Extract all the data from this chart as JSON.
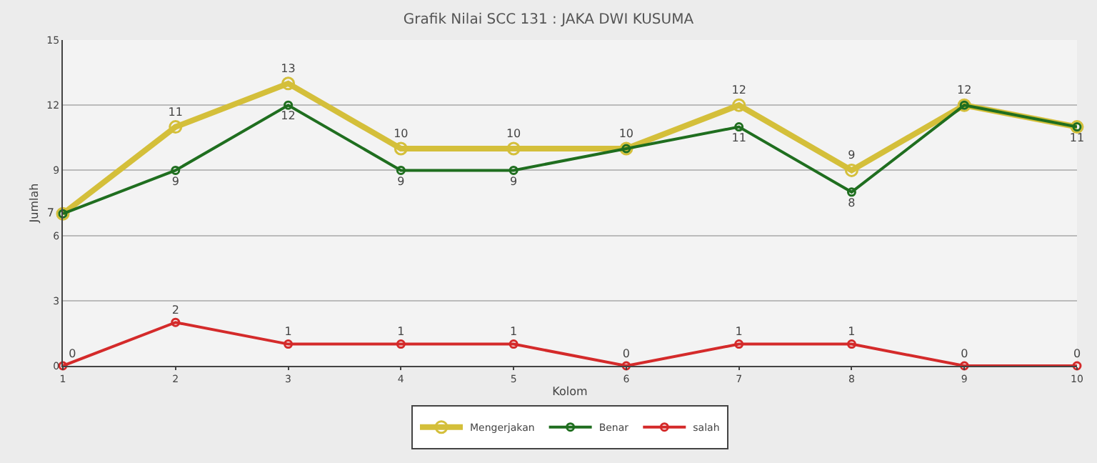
{
  "chart_data": {
    "type": "line",
    "title": "Grafik Nilai SCC 131 : JAKA DWI KUSUMA",
    "xlabel": "Kolom",
    "ylabel": "Jumlah",
    "x": [
      1,
      2,
      3,
      4,
      5,
      6,
      7,
      8,
      9,
      10
    ],
    "xlim": [
      1,
      10
    ],
    "xticks": [
      1,
      2,
      3,
      4,
      5,
      6,
      7,
      8,
      9,
      10
    ],
    "ylim": [
      0,
      15
    ],
    "yticks": [
      0,
      3,
      6,
      9,
      12,
      15
    ],
    "grid": "y",
    "legend": "bottom",
    "marker": "circle",
    "line_style": "solid",
    "series": [
      {
        "name": "Mengerjakan",
        "color": "#d4bf3a",
        "values": [
          7,
          11,
          13,
          10,
          10,
          10,
          12,
          9,
          12,
          11
        ],
        "value_labels": [
          "7",
          "11",
          "13",
          "10",
          "10",
          "10",
          "12",
          "9",
          "12",
          null
        ]
      },
      {
        "name": "Benar",
        "color": "#1f6e1f",
        "values": [
          7,
          9,
          12,
          9,
          9,
          10,
          11,
          8,
          12,
          11
        ],
        "value_labels": [
          null,
          "9",
          "12",
          "9",
          "9",
          null,
          "11",
          "8",
          null,
          "11"
        ]
      },
      {
        "name": "salah",
        "color": "#d42a2a",
        "values": [
          0,
          2,
          1,
          1,
          1,
          0,
          1,
          1,
          0,
          0
        ],
        "value_labels": [
          "0",
          "2",
          "1",
          "1",
          "1",
          "0",
          "1",
          "1",
          "0",
          "0"
        ]
      }
    ]
  }
}
